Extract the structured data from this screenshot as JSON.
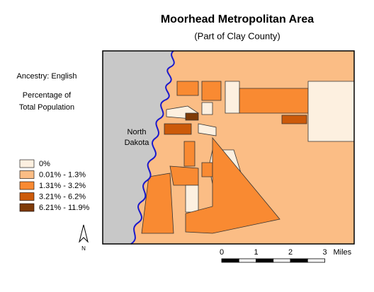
{
  "header": {
    "title": "Moorhead Metropolitan Area",
    "subtitle": "(Part of Clay County)"
  },
  "side_text": {
    "ancestry": "Ancestry: English",
    "measure_line1": "Percentage of",
    "measure_line2": "Total Population"
  },
  "legend": {
    "items": [
      {
        "label": "0%",
        "color": "#fdf0e0"
      },
      {
        "label": "0.01% - 1.3%",
        "color": "#fbbd85"
      },
      {
        "label": "1.31% - 3.2%",
        "color": "#f98a32"
      },
      {
        "label": "3.21% - 6.2%",
        "color": "#cc5a0a"
      },
      {
        "label": "6.21% - 11.9%",
        "color": "#7f3b08"
      }
    ]
  },
  "map": {
    "region_label_line1": "North",
    "region_label_line2": "Dakota"
  },
  "north_arrow": "N",
  "scale_bar": {
    "ticks": [
      "0",
      "1",
      "2",
      "3"
    ],
    "unit": "Miles"
  }
}
